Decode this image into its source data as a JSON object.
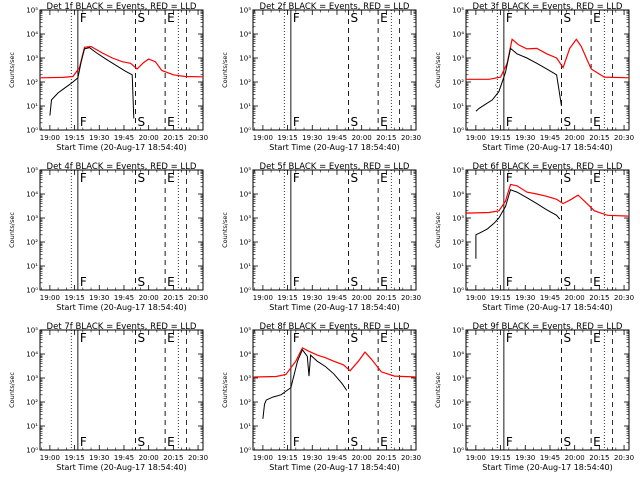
{
  "chart_data": {
    "type": "line",
    "x_tick_labels": [
      "19:00",
      "19:15",
      "19:30",
      "19:45",
      "20:00",
      "20:15",
      "20:30"
    ],
    "x_range": [
      "18:54",
      "20:33"
    ],
    "xlabel": "Start Time (20-Aug-17 18:54:40)",
    "ylabel": "Counts/sec",
    "y_scale": "log",
    "y_range": [
      1,
      100000
    ],
    "y_tick_labels": [
      "10⁰",
      "10¹",
      "10²",
      "10³",
      "10⁴",
      "10⁵"
    ],
    "grid": false,
    "series_colors": {
      "events": "#000000",
      "lld": "#ff0000"
    },
    "markers": [
      {
        "label": "F",
        "time": "19:17",
        "style": "solid"
      },
      {
        "label": "S",
        "time": "19:52",
        "style": "dashed"
      },
      {
        "label": "E",
        "time": "20:10",
        "style": "dashed"
      }
    ],
    "attenuator_lines": [
      {
        "time": "19:13",
        "style": "dotted"
      },
      {
        "time": "20:18",
        "style": "dotted"
      },
      {
        "time": "20:23",
        "style": "dashed"
      }
    ],
    "panels": [
      {
        "title": "Det 1f BLACK = Events, RED = LLD",
        "lld": [
          [
            "18:54",
            150
          ],
          [
            "19:08",
            155
          ],
          [
            "19:14",
            170
          ],
          [
            "19:18",
            400
          ],
          [
            "19:21",
            2800
          ],
          [
            "19:25",
            3000
          ],
          [
            "19:32",
            1600
          ],
          [
            "19:38",
            1000
          ],
          [
            "19:44",
            700
          ],
          [
            "19:49",
            600
          ],
          [
            "19:53",
            350
          ],
          [
            "19:57",
            650
          ],
          [
            "20:00",
            900
          ],
          [
            "20:04",
            700
          ],
          [
            "20:08",
            300
          ],
          [
            "20:15",
            200
          ],
          [
            "20:22",
            170
          ],
          [
            "20:33",
            165
          ]
        ],
        "events": [
          [
            "19:00",
            4
          ],
          [
            "19:01",
            18
          ],
          [
            "19:03",
            25
          ],
          [
            "19:05",
            35
          ],
          [
            "19:08",
            50
          ],
          [
            "19:11",
            70
          ],
          [
            "19:14",
            100
          ],
          [
            "19:17",
            150
          ],
          [
            "19:19",
            700
          ],
          [
            "19:21",
            2400
          ],
          [
            "19:24",
            2700
          ],
          [
            "19:28",
            1700
          ],
          [
            "19:34",
            900
          ],
          [
            "19:40",
            500
          ],
          [
            "19:46",
            280
          ],
          [
            "19:50",
            200
          ],
          [
            "19:51",
            3
          ]
        ]
      },
      {
        "title": "Det 2f BLACK = Events, RED = LLD",
        "lld": [],
        "events": []
      },
      {
        "title": "Det 3f BLACK = Events, RED = LLD",
        "lld": [
          [
            "18:54",
            130
          ],
          [
            "19:08",
            130
          ],
          [
            "19:15",
            160
          ],
          [
            "19:19",
            600
          ],
          [
            "19:22",
            6000
          ],
          [
            "19:26",
            3500
          ],
          [
            "19:31",
            2400
          ],
          [
            "19:37",
            2500
          ],
          [
            "19:43",
            1500
          ],
          [
            "19:49",
            1000
          ],
          [
            "19:53",
            400
          ],
          [
            "19:57",
            2500
          ],
          [
            "20:01",
            6000
          ],
          [
            "20:04",
            3000
          ],
          [
            "20:10",
            350
          ],
          [
            "20:18",
            160
          ],
          [
            "20:33",
            150
          ]
        ],
        "events": [
          [
            "19:00",
            6
          ],
          [
            "19:02",
            8
          ],
          [
            "19:06",
            12
          ],
          [
            "19:10",
            18
          ],
          [
            "19:14",
            40
          ],
          [
            "19:18",
            250
          ],
          [
            "19:21",
            2500
          ],
          [
            "19:25",
            1500
          ],
          [
            "19:31",
            1000
          ],
          [
            "19:37",
            600
          ],
          [
            "19:43",
            350
          ],
          [
            "19:49",
            200
          ],
          [
            "19:52",
            10
          ]
        ]
      },
      {
        "title": "Det 4f BLACK = Events, RED = LLD",
        "lld": [],
        "events": []
      },
      {
        "title": "Det 5f BLACK = Events, RED = LLD",
        "lld": [],
        "events": []
      },
      {
        "title": "Det 6f BLACK = Events, RED = LLD",
        "lld": [
          [
            "18:54",
            1600
          ],
          [
            "19:08",
            1700
          ],
          [
            "19:14",
            2000
          ],
          [
            "19:18",
            5000
          ],
          [
            "19:21",
            25000
          ],
          [
            "19:25",
            22000
          ],
          [
            "19:31",
            12000
          ],
          [
            "19:37",
            10000
          ],
          [
            "19:43",
            8000
          ],
          [
            "19:49",
            6000
          ],
          [
            "19:53",
            4000
          ],
          [
            "19:58",
            6000
          ],
          [
            "20:02",
            9000
          ],
          [
            "20:06",
            5000
          ],
          [
            "20:12",
            2000
          ],
          [
            "20:20",
            1300
          ],
          [
            "20:33",
            1200
          ]
        ],
        "events": [
          [
            "19:00",
            20
          ],
          [
            "19:00",
            200
          ],
          [
            "19:03",
            250
          ],
          [
            "19:07",
            350
          ],
          [
            "19:11",
            600
          ],
          [
            "19:14",
            1000
          ],
          [
            "19:18",
            3000
          ],
          [
            "19:21",
            15000
          ],
          [
            "19:25",
            12000
          ],
          [
            "19:31",
            7000
          ],
          [
            "19:37",
            4000
          ],
          [
            "19:43",
            2200
          ],
          [
            "19:49",
            1300
          ],
          [
            "19:51",
            900
          ]
        ]
      },
      {
        "title": "Det 7f BLACK = Events, RED = LLD",
        "lld": [],
        "events": []
      },
      {
        "title": "Det 8f BLACK = Events, RED = LLD",
        "lld": [
          [
            "18:54",
            1100
          ],
          [
            "19:08",
            1150
          ],
          [
            "19:14",
            1400
          ],
          [
            "19:20",
            5000
          ],
          [
            "19:24",
            18000
          ],
          [
            "19:28",
            13000
          ],
          [
            "19:33",
            9000
          ],
          [
            "19:38",
            7000
          ],
          [
            "19:43",
            5000
          ],
          [
            "19:49",
            3500
          ],
          [
            "19:53",
            2000
          ],
          [
            "19:58",
            5000
          ],
          [
            "20:02",
            12000
          ],
          [
            "20:06",
            6000
          ],
          [
            "20:12",
            1800
          ],
          [
            "20:20",
            1200
          ],
          [
            "20:33",
            1100
          ]
        ],
        "events": [
          [
            "19:00",
            20
          ],
          [
            "19:01",
            80
          ],
          [
            "19:02",
            120
          ],
          [
            "19:06",
            160
          ],
          [
            "19:11",
            200
          ],
          [
            "19:17",
            400
          ],
          [
            "19:21",
            5000
          ],
          [
            "19:24",
            15000
          ],
          [
            "19:27",
            8000
          ],
          [
            "19:28",
            1200
          ],
          [
            "19:29",
            9000
          ],
          [
            "19:33",
            5000
          ],
          [
            "19:38",
            3000
          ],
          [
            "19:43",
            1500
          ],
          [
            "19:48",
            600
          ],
          [
            "19:51",
            300
          ]
        ]
      },
      {
        "title": "Det 9f BLACK = Events, RED = LLD",
        "lld": [],
        "events": []
      }
    ]
  }
}
